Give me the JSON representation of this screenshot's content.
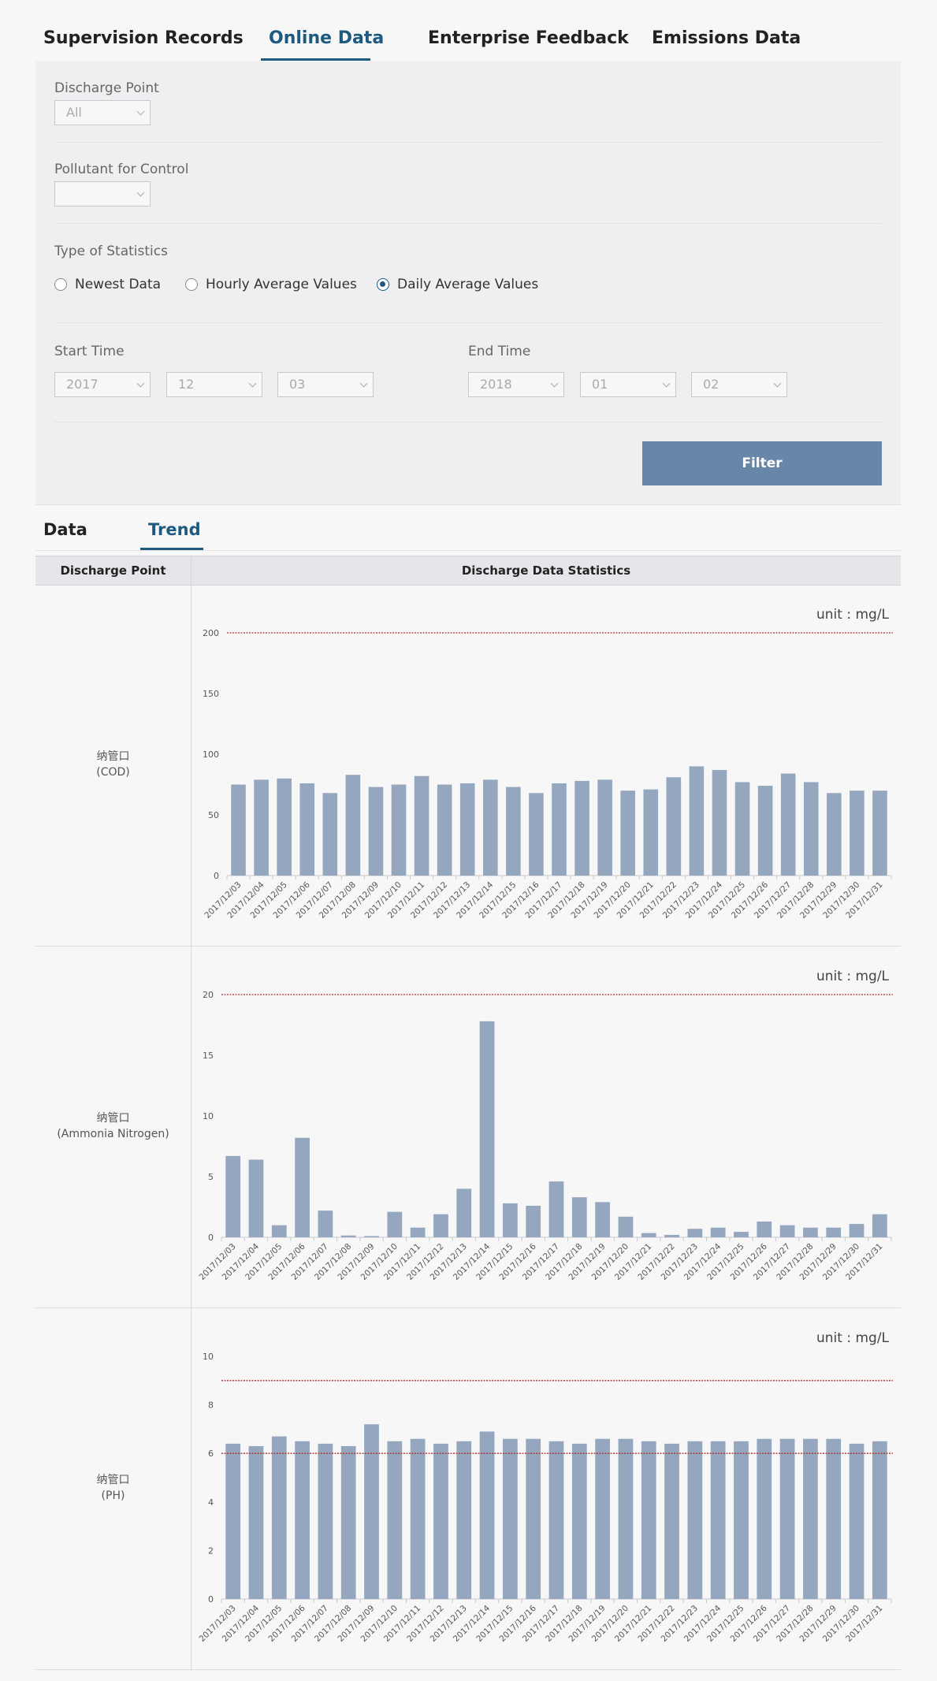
{
  "tabs": [
    {
      "label": "Supervision Records"
    },
    {
      "label": "Online Data"
    },
    {
      "label": "Enterprise Feedback"
    },
    {
      "label": "Emissions Data"
    }
  ],
  "filters": {
    "discharge_point": {
      "label": "Discharge Point",
      "value": "All"
    },
    "pollutant": {
      "label": "Pollutant for Control",
      "value": ""
    },
    "statistics": {
      "label": "Type of Statistics",
      "options": [
        "Newest Data",
        "Hourly Average Values",
        "Daily Average Values"
      ],
      "selected": "Daily Average Values"
    },
    "start_time": {
      "label": "Start Time",
      "year": "2017",
      "month": "12",
      "day": "03"
    },
    "end_time": {
      "label": "End Time",
      "year": "2018",
      "month": "01",
      "day": "02"
    },
    "filter_button": "Filter"
  },
  "subtabs": [
    {
      "label": "Data"
    },
    {
      "label": "Trend"
    }
  ],
  "table": {
    "col1": "Discharge Point",
    "col2": "Discharge Data Statistics"
  },
  "rows": [
    {
      "label_cn": "纳管口",
      "label_en": "(COD)"
    },
    {
      "label_cn": "纳管口",
      "label_en": "(Ammonia Nitrogen)"
    },
    {
      "label_cn": "纳管口",
      "label_en": "(PH)"
    }
  ],
  "colors": {
    "accent": "#1e5a80",
    "bar": "#95a7be",
    "limit": "#b03030",
    "button": "#6786a8"
  },
  "chart_data": [
    {
      "type": "bar",
      "unit": "unit : mg/L",
      "categories": [
        "2017/12/03",
        "2017/12/04",
        "2017/12/05",
        "2017/12/06",
        "2017/12/07",
        "2017/12/08",
        "2017/12/09",
        "2017/12/10",
        "2017/12/11",
        "2017/12/12",
        "2017/12/13",
        "2017/12/14",
        "2017/12/15",
        "2017/12/16",
        "2017/12/17",
        "2017/12/18",
        "2017/12/19",
        "2017/12/20",
        "2017/12/21",
        "2017/12/22",
        "2017/12/23",
        "2017/12/24",
        "2017/12/25",
        "2017/12/26",
        "2017/12/27",
        "2017/12/28",
        "2017/12/29",
        "2017/12/30",
        "2017/12/31"
      ],
      "values": [
        75,
        79,
        80,
        76,
        68,
        83,
        73,
        75,
        82,
        75,
        76,
        79,
        73,
        68,
        76,
        78,
        79,
        70,
        71,
        81,
        90,
        87,
        77,
        74,
        84,
        77,
        68,
        70,
        70
      ],
      "ylim": [
        0,
        200
      ],
      "yticks": [
        0,
        50,
        100,
        150,
        200
      ],
      "limit_lines": [
        200
      ]
    },
    {
      "type": "bar",
      "unit": "unit : mg/L",
      "categories": [
        "2017/12/03",
        "2017/12/04",
        "2017/12/05",
        "2017/12/06",
        "2017/12/07",
        "2017/12/08",
        "2017/12/09",
        "2017/12/10",
        "2017/12/11",
        "2017/12/12",
        "2017/12/13",
        "2017/12/14",
        "2017/12/15",
        "2017/12/16",
        "2017/12/17",
        "2017/12/18",
        "2017/12/19",
        "2017/12/20",
        "2017/12/21",
        "2017/12/22",
        "2017/12/23",
        "2017/12/24",
        "2017/12/25",
        "2017/12/26",
        "2017/12/27",
        "2017/12/28",
        "2017/12/29",
        "2017/12/30",
        "2017/12/31"
      ],
      "values": [
        6.7,
        6.4,
        1.0,
        8.2,
        2.2,
        0.15,
        0.1,
        2.1,
        0.8,
        1.9,
        4.0,
        17.8,
        2.8,
        2.6,
        4.6,
        3.3,
        2.9,
        1.7,
        0.35,
        0.2,
        0.7,
        0.8,
        0.45,
        1.3,
        1.0,
        0.8,
        0.8,
        1.1,
        1.9
      ],
      "ylim": [
        0,
        20
      ],
      "yticks": [
        0,
        5,
        10,
        15,
        20
      ],
      "limit_lines": [
        20
      ]
    },
    {
      "type": "bar",
      "unit": "unit : mg/L",
      "categories": [
        "2017/12/03",
        "2017/12/04",
        "2017/12/05",
        "2017/12/06",
        "2017/12/07",
        "2017/12/08",
        "2017/12/09",
        "2017/12/10",
        "2017/12/11",
        "2017/12/12",
        "2017/12/13",
        "2017/12/14",
        "2017/12/15",
        "2017/12/16",
        "2017/12/17",
        "2017/12/18",
        "2017/12/19",
        "2017/12/20",
        "2017/12/21",
        "2017/12/22",
        "2017/12/23",
        "2017/12/24",
        "2017/12/25",
        "2017/12/26",
        "2017/12/27",
        "2017/12/28",
        "2017/12/29",
        "2017/12/30",
        "2017/12/31"
      ],
      "values": [
        6.4,
        6.3,
        6.7,
        6.5,
        6.4,
        6.3,
        7.2,
        6.5,
        6.6,
        6.4,
        6.5,
        6.9,
        6.6,
        6.6,
        6.5,
        6.4,
        6.6,
        6.6,
        6.5,
        6.4,
        6.5,
        6.5,
        6.5,
        6.6,
        6.6,
        6.6,
        6.6,
        6.4,
        6.5
      ],
      "ylim": [
        0,
        10
      ],
      "yticks": [
        0,
        2,
        4,
        6,
        8,
        10
      ],
      "limit_lines": [
        9,
        6
      ]
    }
  ]
}
